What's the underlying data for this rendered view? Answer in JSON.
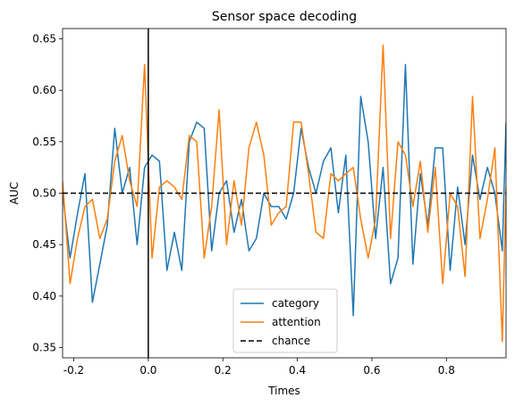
{
  "chart_data": {
    "type": "line",
    "title": "Sensor space decoding",
    "xlabel": "Times",
    "ylabel": "AUC",
    "xlim": [
      -0.23,
      0.96
    ],
    "ylim": [
      0.34,
      0.66
    ],
    "xticks": [
      -0.2,
      0.0,
      0.2,
      0.4,
      0.6,
      0.8
    ],
    "xtick_labels": [
      "-0.2",
      "0.0",
      "0.2",
      "0.4",
      "0.6",
      "0.8"
    ],
    "yticks": [
      0.35,
      0.4,
      0.45,
      0.5,
      0.55,
      0.6,
      0.65
    ],
    "ytick_labels": [
      "0.35",
      "0.40",
      "0.45",
      "0.50",
      "0.55",
      "0.60",
      "0.65"
    ],
    "grid": false,
    "legend_position": "lower-center",
    "x": [
      -0.23,
      -0.21,
      -0.19,
      -0.17,
      -0.15,
      -0.13,
      -0.11,
      -0.09,
      -0.07,
      -0.05,
      -0.03,
      -0.01,
      0.01,
      0.03,
      0.05,
      0.07,
      0.09,
      0.11,
      0.13,
      0.15,
      0.17,
      0.19,
      0.21,
      0.23,
      0.25,
      0.27,
      0.29,
      0.31,
      0.33,
      0.35,
      0.37,
      0.39,
      0.41,
      0.43,
      0.45,
      0.47,
      0.49,
      0.51,
      0.53,
      0.55,
      0.57,
      0.59,
      0.61,
      0.63,
      0.65,
      0.67,
      0.69,
      0.71,
      0.73,
      0.75,
      0.77,
      0.79,
      0.81,
      0.83,
      0.85,
      0.87,
      0.89,
      0.91,
      0.93,
      0.95,
      0.96
    ],
    "series": [
      {
        "name": "category",
        "color": "#1f77b4",
        "style": "solid",
        "values": [
          0.5,
          0.437,
          0.48,
          0.519,
          0.394,
          0.431,
          0.469,
          0.563,
          0.5,
          0.525,
          0.45,
          0.525,
          0.537,
          0.531,
          0.425,
          0.462,
          0.425,
          0.55,
          0.569,
          0.563,
          0.444,
          0.5,
          0.512,
          0.462,
          0.494,
          0.444,
          0.456,
          0.5,
          0.487,
          0.487,
          0.475,
          0.5,
          0.563,
          0.525,
          0.5,
          0.531,
          0.544,
          0.481,
          0.537,
          0.381,
          0.594,
          0.55,
          0.456,
          0.525,
          0.412,
          0.437,
          0.625,
          0.431,
          0.519,
          0.469,
          0.544,
          0.544,
          0.425,
          0.506,
          0.45,
          0.537,
          0.494,
          0.525,
          0.5,
          0.444,
          0.569
        ]
      },
      {
        "name": "attention",
        "color": "#ff7f0e",
        "style": "solid",
        "values": [
          0.512,
          0.412,
          0.456,
          0.487,
          0.494,
          0.456,
          0.475,
          0.531,
          0.556,
          0.512,
          0.487,
          0.625,
          0.437,
          0.506,
          0.512,
          0.506,
          0.494,
          0.556,
          0.55,
          0.437,
          0.487,
          0.581,
          0.45,
          0.512,
          0.469,
          0.544,
          0.569,
          0.537,
          0.469,
          0.481,
          0.487,
          0.569,
          0.569,
          0.519,
          0.462,
          0.456,
          0.519,
          0.512,
          0.519,
          0.525,
          0.475,
          0.437,
          0.475,
          0.644,
          0.456,
          0.55,
          0.537,
          0.487,
          0.531,
          0.462,
          0.525,
          0.412,
          0.5,
          0.487,
          0.419,
          0.594,
          0.456,
          0.494,
          0.544,
          0.356,
          0.506
        ]
      },
      {
        "name": "chance",
        "color": "#000000",
        "style": "dashed",
        "values": [
          0.5,
          0.5
        ],
        "x": [
          -0.23,
          0.96
        ]
      }
    ],
    "annotations": [
      {
        "type": "vline",
        "x": 0.0,
        "color": "#000000"
      }
    ]
  }
}
